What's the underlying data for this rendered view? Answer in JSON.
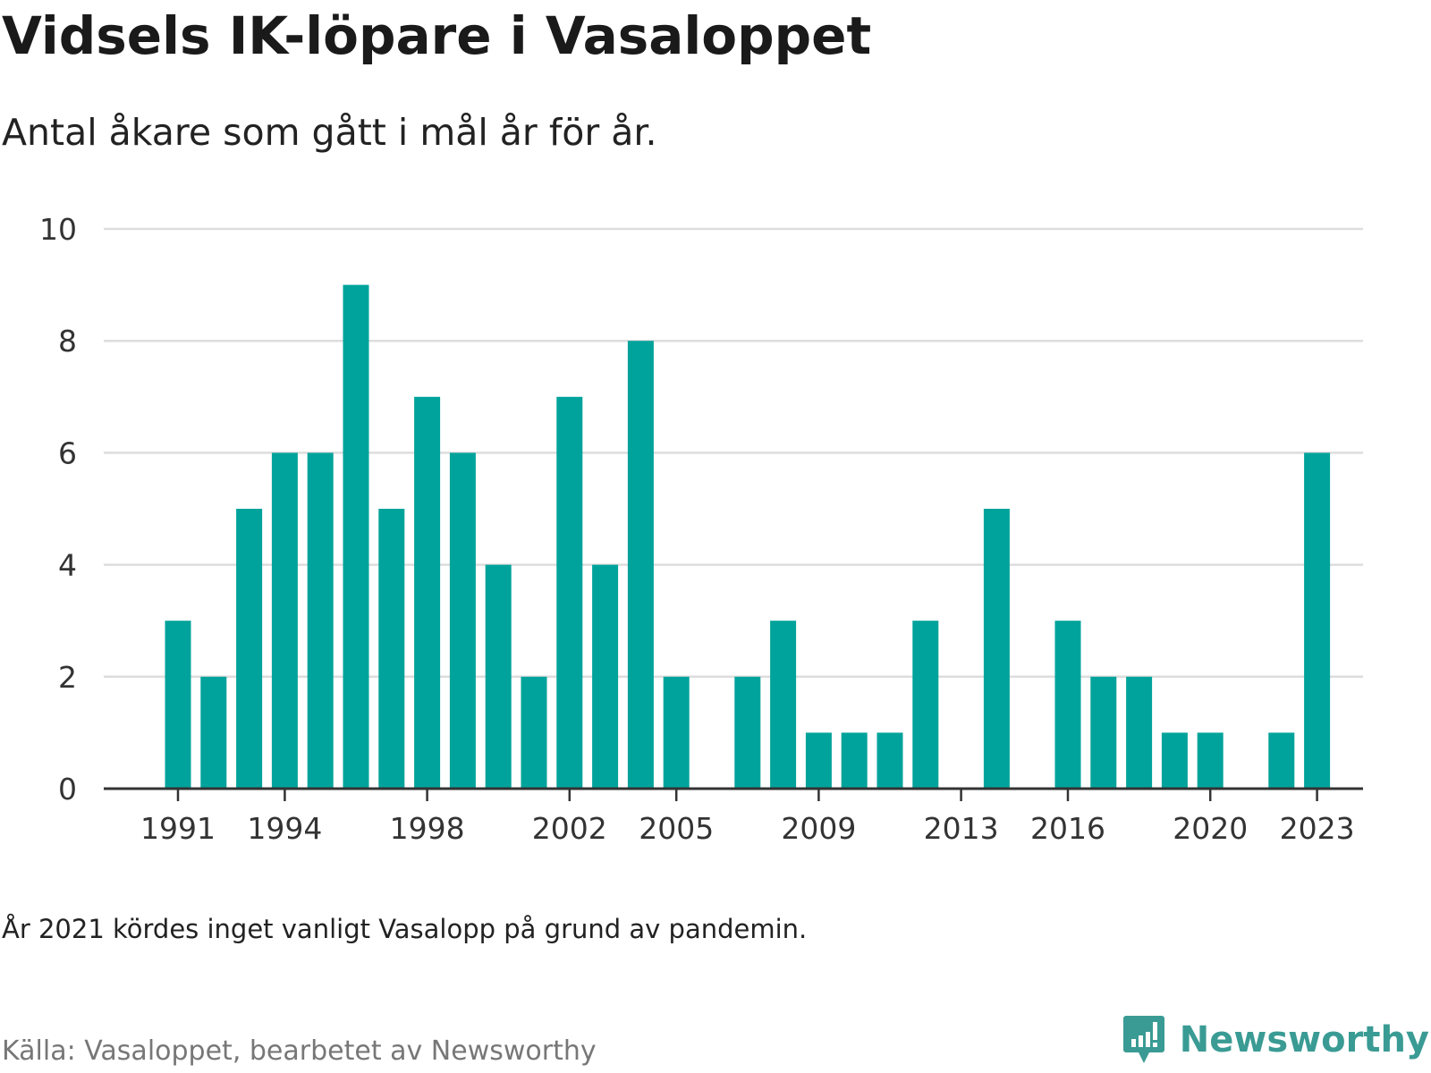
{
  "header": {
    "title": "Vidsels IK-löpare i Vasaloppet",
    "subtitle": "Antal åkare som gått i mål år för år."
  },
  "footer": {
    "note": "År 2021 kördes inget vanligt Vasalopp på grund av pandemin.",
    "source": "Källa: Vasaloppet, bearbetet av Newsworthy",
    "brand": "Newsworthy",
    "brand_icon": "newsworthy-logo-icon"
  },
  "colors": {
    "bar": "#00a39b",
    "grid": "#dddddd",
    "axis": "#333333",
    "brand": "#3a9b94"
  },
  "chart_data": {
    "type": "bar",
    "x": [
      1991,
      1992,
      1993,
      1994,
      1995,
      1996,
      1997,
      1998,
      1999,
      2000,
      2001,
      2002,
      2003,
      2004,
      2005,
      2006,
      2007,
      2008,
      2009,
      2010,
      2011,
      2012,
      2013,
      2014,
      2015,
      2016,
      2017,
      2018,
      2019,
      2020,
      2021,
      2022,
      2023
    ],
    "values": [
      3,
      2,
      5,
      6,
      6,
      9,
      5,
      7,
      6,
      4,
      2,
      7,
      4,
      8,
      2,
      0,
      2,
      3,
      1,
      1,
      1,
      3,
      0,
      5,
      0,
      3,
      2,
      2,
      1,
      1,
      0,
      1,
      6
    ],
    "xticks": [
      1991,
      1994,
      1998,
      2002,
      2005,
      2009,
      2013,
      2016,
      2020,
      2023
    ],
    "yticks": [
      0,
      2,
      4,
      6,
      8,
      10
    ],
    "ylim": [
      0,
      10
    ],
    "xlim": [
      1991,
      2023
    ],
    "grid": true,
    "legend": "none"
  }
}
